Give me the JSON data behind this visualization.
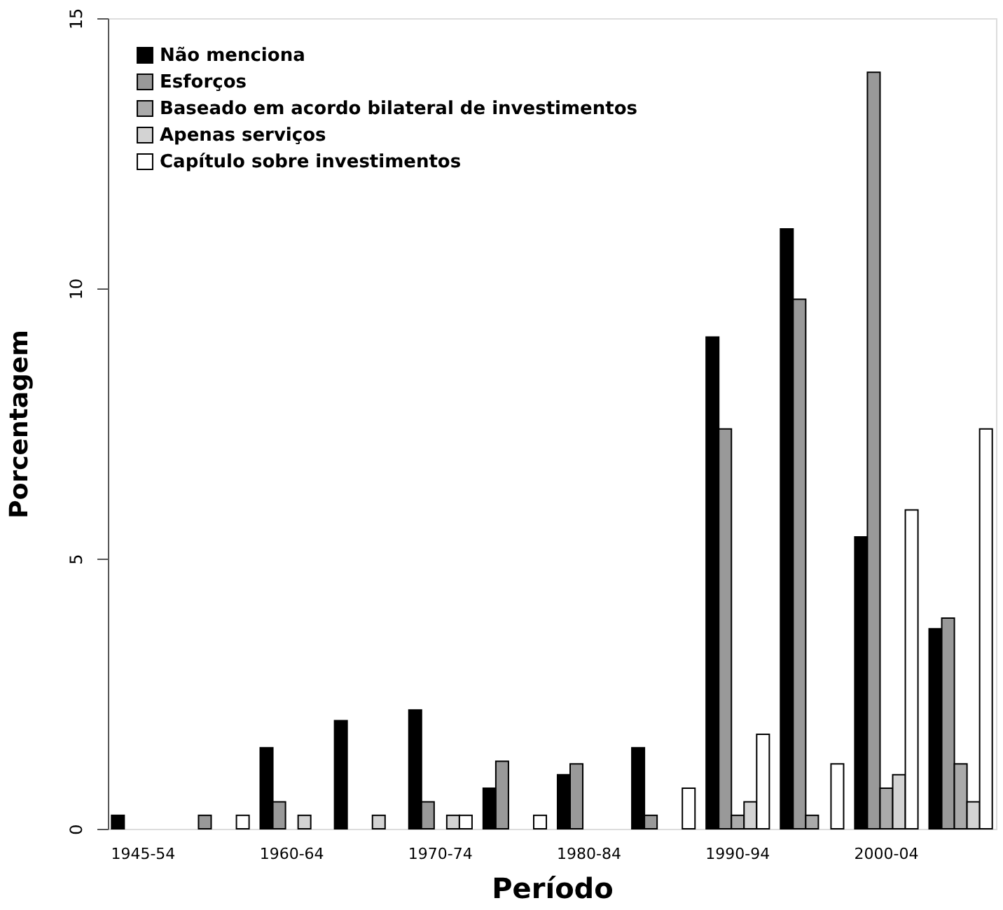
{
  "chart_data": {
    "type": "bar",
    "xlabel": "Período",
    "ylabel": "Porcentagem",
    "categories": [
      "1945-54",
      null,
      "1960-64",
      null,
      "1970-74",
      null,
      "1980-84",
      null,
      "1990-94",
      null,
      "2000-04",
      null
    ],
    "series": [
      {
        "name": "Não menciona",
        "color": "#000000",
        "values": [
          0.25,
          0,
          1.5,
          2.0,
          2.2,
          0.75,
          1.0,
          1.5,
          9.1,
          11.1,
          5.4,
          3.7
        ]
      },
      {
        "name": "Esforços",
        "color": "#999999",
        "values": [
          0,
          0.25,
          0.5,
          0,
          0.5,
          1.25,
          1.2,
          0.25,
          7.4,
          9.8,
          14.0,
          3.9
        ]
      },
      {
        "name": "Baseado em acordo bilateral de investimentos",
        "color": "#aaaaaa",
        "values": [
          0,
          0,
          0,
          0,
          0,
          0,
          0,
          0,
          0.25,
          0.25,
          0.75,
          1.2
        ]
      },
      {
        "name": "Apenas serviços",
        "color": "#d3d3d3",
        "values": [
          0,
          0,
          0.25,
          0.25,
          0.25,
          0,
          0,
          0,
          0.5,
          0,
          1.0,
          0.5
        ]
      },
      {
        "name": "Capítulo sobre investimentos",
        "color": "#ffffff",
        "values": [
          0,
          0.25,
          0,
          0,
          0.25,
          0.25,
          0,
          0.75,
          1.75,
          1.2,
          5.9,
          7.4
        ]
      }
    ],
    "ylim": [
      0,
      15
    ],
    "yticks": [
      0,
      5,
      10,
      15
    ],
    "grid": false,
    "legend": "top left"
  }
}
